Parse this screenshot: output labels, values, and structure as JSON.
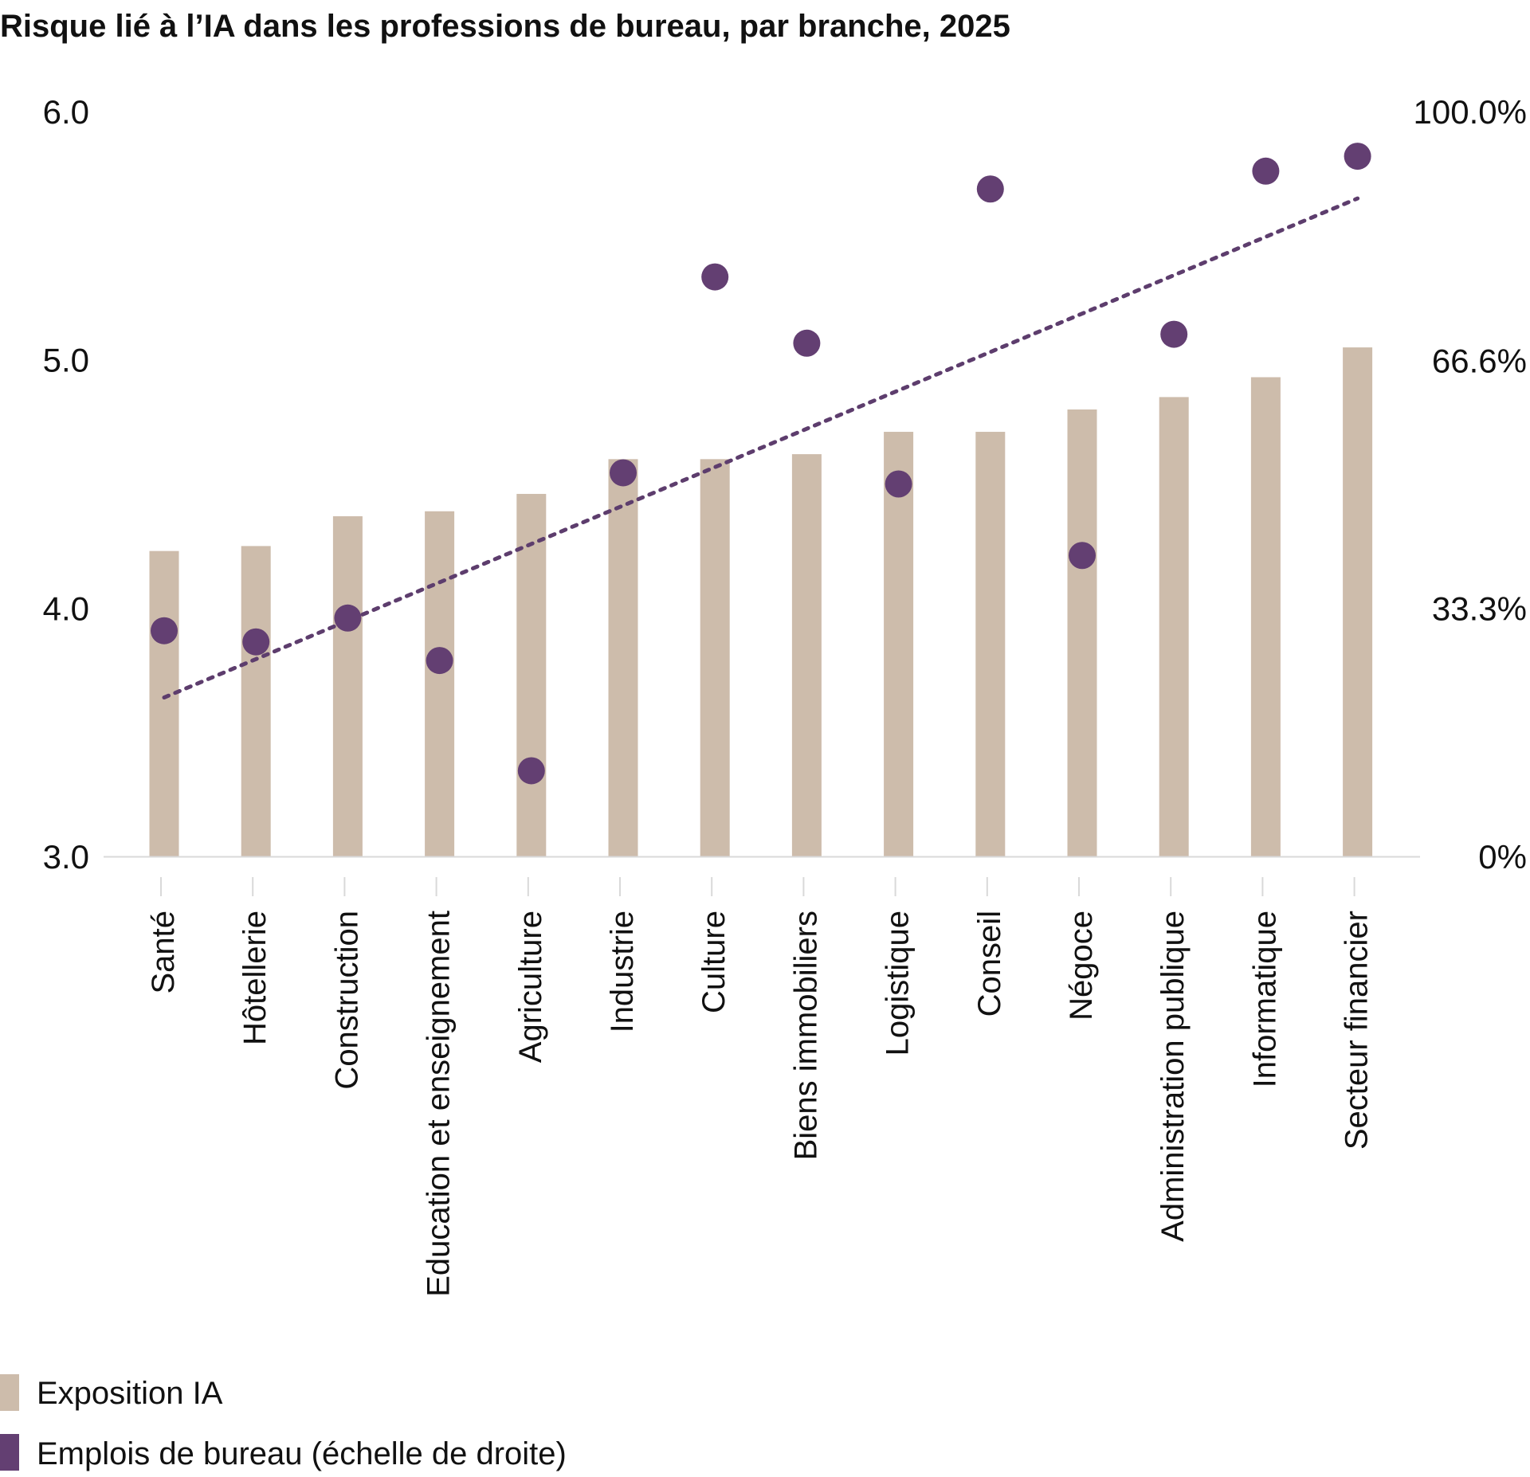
{
  "chart_data": {
    "type": "bar",
    "title": "Risque lié à l’IA dans les professions de bureau, par branche, 2025",
    "categories": [
      "Santé",
      "Hôtellerie",
      "Construction",
      "Education et enseignement",
      "Agriculture",
      "Industrie",
      "Culture",
      "Biens immobiliers",
      "Logistique",
      "Conseil",
      "Négoce",
      "Administration publique",
      "Informatique",
      "Secteur financier"
    ],
    "series": [
      {
        "name": "Exposition IA",
        "type": "bar",
        "axis": "left",
        "color": "#cdbcab",
        "values": [
          4.23,
          4.25,
          4.37,
          4.39,
          4.46,
          4.6,
          4.6,
          4.62,
          4.71,
          4.71,
          4.8,
          4.85,
          4.93,
          5.05
        ]
      },
      {
        "name": "Emplois de bureau (échelle de droite)",
        "type": "scatter",
        "axis": "right",
        "color": "#633f72",
        "values": [
          30.3,
          28.8,
          32.0,
          26.3,
          11.5,
          51.5,
          77.8,
          68.9,
          50.0,
          89.6,
          40.4,
          70.1,
          92.0,
          94.0
        ]
      }
    ],
    "trendline": {
      "style": "dotted",
      "color": "#5d3d6d",
      "axis": "left",
      "start": 3.64,
      "end": 5.65
    },
    "y_left": {
      "ylim": [
        3.0,
        6.0
      ],
      "ticks": [
        3.0,
        4.0,
        5.0,
        6.0
      ],
      "tick_labels": [
        "3.0",
        "4.0",
        "5.0",
        "6.0"
      ]
    },
    "y_right": {
      "ylim": [
        0,
        100
      ],
      "ticks": [
        0,
        33.3,
        66.6,
        100
      ],
      "tick_labels": [
        "0%",
        "33.3%",
        "66.6%",
        "100.0%"
      ]
    },
    "xlabel": "",
    "ylabel": "",
    "grid": false,
    "legend_position": "bottom-left",
    "axis_color": "#d9d9d9"
  }
}
